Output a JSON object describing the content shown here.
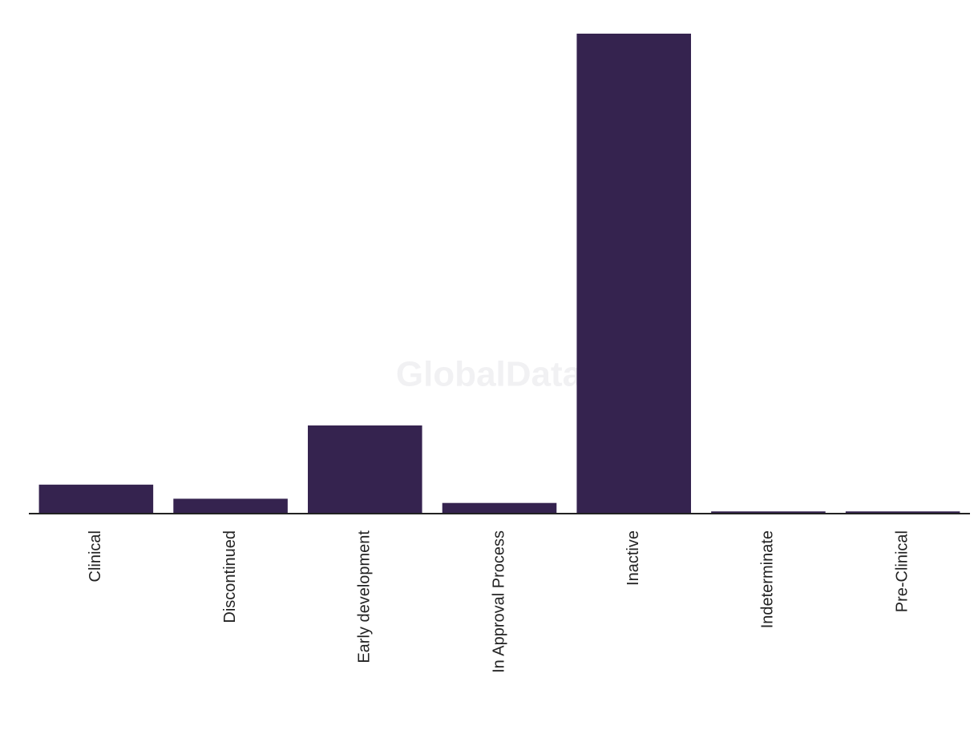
{
  "chart_data": {
    "type": "bar",
    "watermark": "GlobalData",
    "categories": [
      "Clinical",
      "Discontinued",
      "Early development",
      "In Approval Process",
      "Inactive",
      "Indeterminate",
      "Pre-Clinical"
    ],
    "values": [
      20,
      10,
      62,
      7,
      340,
      1,
      1
    ],
    "color": "#35234f"
  }
}
